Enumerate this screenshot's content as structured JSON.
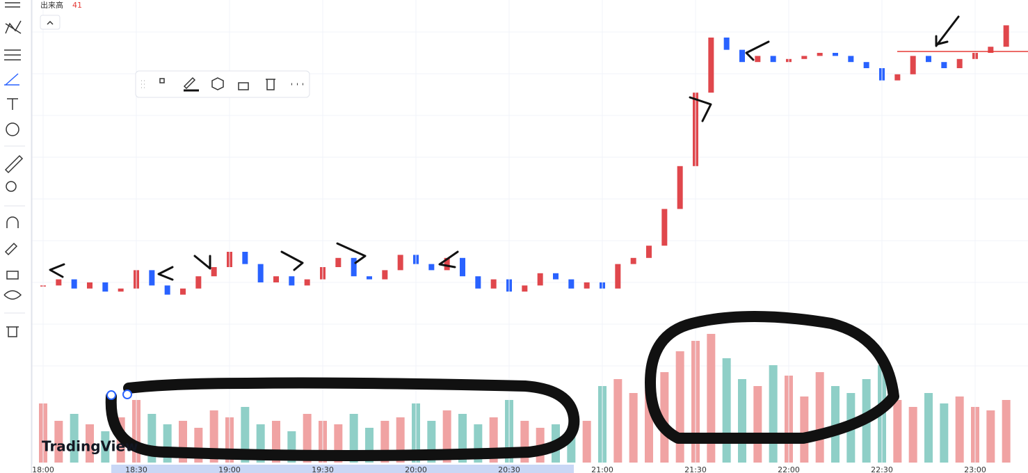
{
  "legend": {
    "label": "出来高",
    "value": 41
  },
  "logo": "TradingView",
  "chart_data": {
    "type": "candlestick",
    "categories": [
      "18:00",
      null,
      null,
      null,
      null,
      null,
      "18:30",
      null,
      null,
      null,
      null,
      null,
      "19:00",
      null,
      null,
      null,
      null,
      null,
      "19:30",
      null,
      null,
      null,
      null,
      null,
      "20:00",
      null,
      null,
      null,
      null,
      null,
      "20:30",
      null,
      null,
      null,
      null,
      null,
      "21:00",
      null,
      null,
      null,
      null,
      null,
      "21:30",
      null,
      null,
      null,
      null,
      null,
      "22:00",
      null,
      null,
      null,
      null,
      null,
      "22:30",
      null,
      null,
      null,
      null,
      null,
      "23:00",
      null,
      null
    ],
    "series": [
      {
        "values": [
          9,
          11,
          8,
          10,
          7,
          8,
          14,
          9,
          6,
          8,
          12,
          15,
          20,
          16,
          10,
          12,
          9,
          11,
          15,
          18,
          12,
          11,
          14,
          19,
          16,
          14,
          18,
          12,
          8,
          11,
          7,
          9,
          13,
          11,
          8,
          10,
          8,
          16,
          18,
          22,
          34,
          48,
          72,
          90,
          86,
          82,
          84,
          82,
          83,
          84,
          85,
          84,
          82,
          80,
          76,
          78,
          84,
          82,
          80,
          83,
          85,
          87,
          94
        ],
        "up_color": "#e0474c",
        "down_color": "#2962ff"
      }
    ],
    "ylim": [
      0,
      100
    ],
    "volume": {
      "values": [
        85,
        60,
        70,
        55,
        45,
        65,
        90,
        70,
        55,
        60,
        50,
        75,
        65,
        80,
        55,
        60,
        45,
        70,
        60,
        55,
        70,
        50,
        60,
        65,
        85,
        60,
        75,
        70,
        55,
        65,
        90,
        60,
        50,
        55,
        40,
        60,
        110,
        120,
        100,
        105,
        130,
        160,
        175,
        185,
        150,
        120,
        110,
        140,
        125,
        95,
        130,
        110,
        100,
        120,
        140,
        90,
        80,
        100,
        85,
        95,
        80,
        75,
        90
      ],
      "ylim": [
        0,
        200
      ],
      "up_color": "#f0a3a3",
      "down_color": "#8fcfc7"
    }
  }
}
